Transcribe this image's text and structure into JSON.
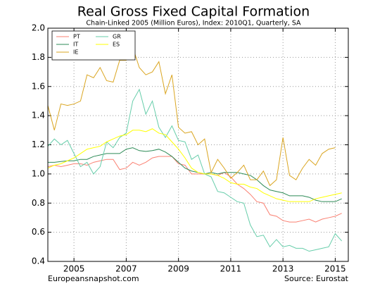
{
  "chart_data": {
    "type": "line",
    "title": "Real Gross Fixed Capital Formation",
    "subtitle": "Chain-Linked 2005 (Million Euros), Index: 2010Q1, Quarterly, SA",
    "footer_left": "Europeansnapshot.com",
    "footer_right": "Source: Eurostat",
    "x": [
      2004,
      2004.25,
      2004.5,
      2004.75,
      2005,
      2005.25,
      2005.5,
      2005.75,
      2006,
      2006.25,
      2006.5,
      2006.75,
      2007,
      2007.25,
      2007.5,
      2007.75,
      2008,
      2008.25,
      2008.5,
      2008.75,
      2009,
      2009.25,
      2009.5,
      2009.75,
      2010,
      2010.25,
      2010.5,
      2010.75,
      2011,
      2011.25,
      2011.5,
      2011.75,
      2012,
      2012.25,
      2012.5,
      2012.75,
      2013,
      2013.25,
      2013.5,
      2013.75,
      2014,
      2014.25,
      2014.5,
      2014.75,
      2015,
      2015.25
    ],
    "xlim": [
      2004,
      2015.5
    ],
    "xticks": [
      2005,
      2007,
      2009,
      2011,
      2013,
      2015
    ],
    "ylim": [
      0.4,
      2.0
    ],
    "yticks": [
      0.4,
      0.6,
      0.8,
      {
        "value": 1,
        "label": "1.0"
      },
      1.2,
      1.4,
      1.6,
      1.8,
      {
        "value": 2,
        "label": "2.0"
      }
    ],
    "grid": true,
    "legend": "upper left",
    "series": [
      {
        "name": "PT",
        "color": "#fa8072",
        "values": [
          1.05,
          1.06,
          1.05,
          1.06,
          1.07,
          1.07,
          1.06,
          1.08,
          1.09,
          1.1,
          1.1,
          1.03,
          1.04,
          1.08,
          1.06,
          1.08,
          1.11,
          1.12,
          1.12,
          1.12,
          1.07,
          1.06,
          1.0,
          1.0,
          1.0,
          1.0,
          0.99,
          1.01,
          0.98,
          0.93,
          0.9,
          0.86,
          0.81,
          0.8,
          0.72,
          0.71,
          0.68,
          0.67,
          0.67,
          0.68,
          0.69,
          0.67,
          0.69,
          0.7,
          0.71,
          0.73
        ]
      },
      {
        "name": "IT",
        "color": "#2e8b57",
        "values": [
          1.08,
          1.08,
          1.085,
          1.09,
          1.09,
          1.1,
          1.1,
          1.12,
          1.13,
          1.14,
          1.14,
          1.14,
          1.17,
          1.18,
          1.16,
          1.155,
          1.16,
          1.17,
          1.15,
          1.12,
          1.08,
          1.04,
          1.02,
          1.01,
          1.0,
          1.01,
          1.0,
          1.01,
          1.01,
          1.01,
          1.0,
          0.99,
          0.96,
          0.92,
          0.89,
          0.88,
          0.87,
          0.85,
          0.85,
          0.85,
          0.84,
          0.82,
          0.81,
          0.81,
          0.81,
          0.83
        ]
      },
      {
        "name": "IE",
        "color": "#daa520",
        "values": [
          1.47,
          1.3,
          1.48,
          1.47,
          1.48,
          1.5,
          1.68,
          1.66,
          1.73,
          1.64,
          1.63,
          1.78,
          1.78,
          1.87,
          1.73,
          1.68,
          1.7,
          1.77,
          1.55,
          1.68,
          1.32,
          1.28,
          1.29,
          1.2,
          1.24,
          1.01,
          1.1,
          1.04,
          0.97,
          1.01,
          1.06,
          0.96,
          0.96,
          1.02,
          0.92,
          0.96,
          1.25,
          0.99,
          0.96,
          1.04,
          1.1,
          1.06,
          1.14,
          1.17,
          1.18,
          null
        ]
      },
      {
        "name": "GR",
        "color": "#66cdaa",
        "values": [
          1.19,
          1.24,
          1.2,
          1.23,
          1.14,
          1.05,
          1.08,
          1.0,
          1.05,
          1.22,
          1.18,
          1.25,
          1.28,
          1.5,
          1.58,
          1.41,
          1.5,
          1.32,
          1.25,
          1.33,
          1.23,
          1.22,
          1.1,
          1.13,
          1.0,
          0.98,
          0.88,
          0.87,
          0.84,
          0.81,
          0.8,
          0.65,
          0.57,
          0.58,
          0.5,
          0.55,
          0.5,
          0.51,
          0.49,
          0.49,
          0.47,
          0.48,
          0.49,
          0.5,
          0.59,
          0.54
        ]
      },
      {
        "name": "ES",
        "color": "#ffff00",
        "values": [
          1.04,
          1.06,
          1.07,
          1.09,
          1.11,
          1.14,
          1.17,
          1.18,
          1.19,
          1.22,
          1.24,
          1.26,
          1.27,
          1.3,
          1.3,
          1.29,
          1.31,
          1.28,
          1.27,
          1.22,
          1.17,
          1.11,
          1.04,
          1.01,
          1.0,
          1.0,
          0.99,
          0.97,
          0.94,
          0.93,
          0.93,
          0.91,
          0.9,
          0.87,
          0.85,
          0.83,
          0.82,
          0.81,
          0.81,
          0.81,
          0.81,
          0.83,
          0.84,
          0.85,
          0.86,
          0.87
        ]
      }
    ]
  }
}
